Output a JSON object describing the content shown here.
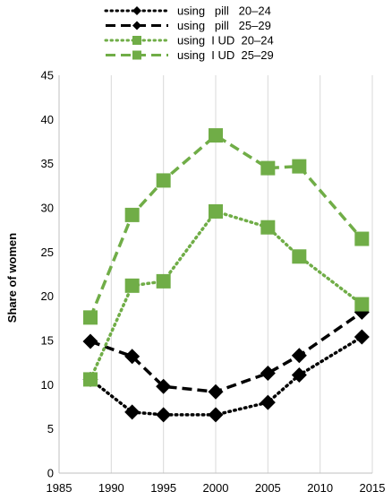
{
  "chart_data": {
    "type": "line",
    "title": "",
    "xlabel": "",
    "ylabel": "Share of women",
    "xlim": [
      1985,
      2015
    ],
    "ylim": [
      0,
      45
    ],
    "xticks": [
      1985,
      1990,
      1995,
      2000,
      2005,
      2010,
      2015
    ],
    "yticks": [
      0,
      5,
      10,
      15,
      20,
      25,
      30,
      35,
      40,
      45
    ],
    "grid": "vertical",
    "legend_position": "top",
    "x": [
      1988,
      1992,
      1995,
      2000,
      2005,
      2008,
      2014
    ],
    "series": [
      {
        "name": "using   pill   20–24",
        "color": "#000000",
        "line_style": "dotted",
        "marker": "diamond",
        "values": [
          10.6,
          6.9,
          6.6,
          6.6,
          8.0,
          11.1,
          15.4
        ]
      },
      {
        "name": "using   pill   25–29",
        "color": "#000000",
        "line_style": "dashed",
        "marker": "diamond",
        "values": [
          14.9,
          13.2,
          9.8,
          9.2,
          11.3,
          13.3,
          18.2
        ]
      },
      {
        "name": "using  I UD  20–24",
        "color": "#70ad47",
        "line_style": "dotted",
        "marker": "square",
        "values": [
          10.6,
          21.2,
          21.7,
          29.6,
          27.8,
          24.5,
          19.1
        ]
      },
      {
        "name": "using  I UD  25–29",
        "color": "#70ad47",
        "line_style": "dashed",
        "marker": "square",
        "values": [
          17.6,
          29.2,
          33.1,
          38.2,
          34.5,
          34.7,
          26.5
        ]
      }
    ]
  }
}
